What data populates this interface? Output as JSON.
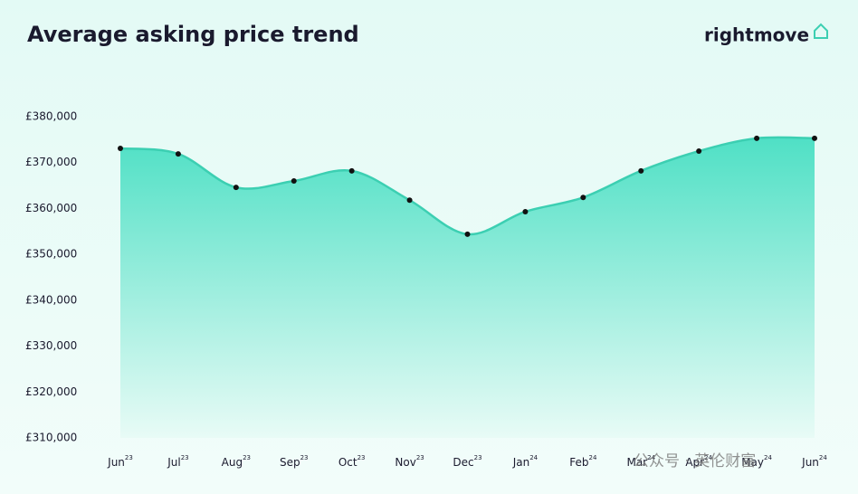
{
  "chart_data": {
    "type": "area",
    "title": "Average asking price trend",
    "logo": "rightmove",
    "categories": [
      "Jun",
      "Jul",
      "Aug",
      "Sep",
      "Oct",
      "Nov",
      "Dec",
      "Jan",
      "Feb",
      "Mar",
      "Apr",
      "May",
      "Jun"
    ],
    "category_years": [
      "23",
      "23",
      "23",
      "23",
      "23",
      "23",
      "23",
      "24",
      "24",
      "24",
      "24",
      "24",
      "24"
    ],
    "values": [
      373100,
      371900,
      364600,
      366000,
      368200,
      361800,
      354400,
      359300,
      362400,
      368200,
      372500,
      375300,
      375300
    ],
    "color": "#3ccfb2",
    "ylim": [
      310000,
      380000
    ],
    "yticks": [
      {
        "value": 310000,
        "label": "£310,000"
      },
      {
        "value": 320000,
        "label": "£320,000"
      },
      {
        "value": 330000,
        "label": "£330,000"
      },
      {
        "value": 340000,
        "label": "£340,000"
      },
      {
        "value": 350000,
        "label": "£350,000"
      },
      {
        "value": 360000,
        "label": "£360,000"
      },
      {
        "value": 370000,
        "label": "£370,000"
      },
      {
        "value": 380000,
        "label": "£380,000"
      }
    ],
    "watermark": "公众号 · 英伦财富"
  }
}
